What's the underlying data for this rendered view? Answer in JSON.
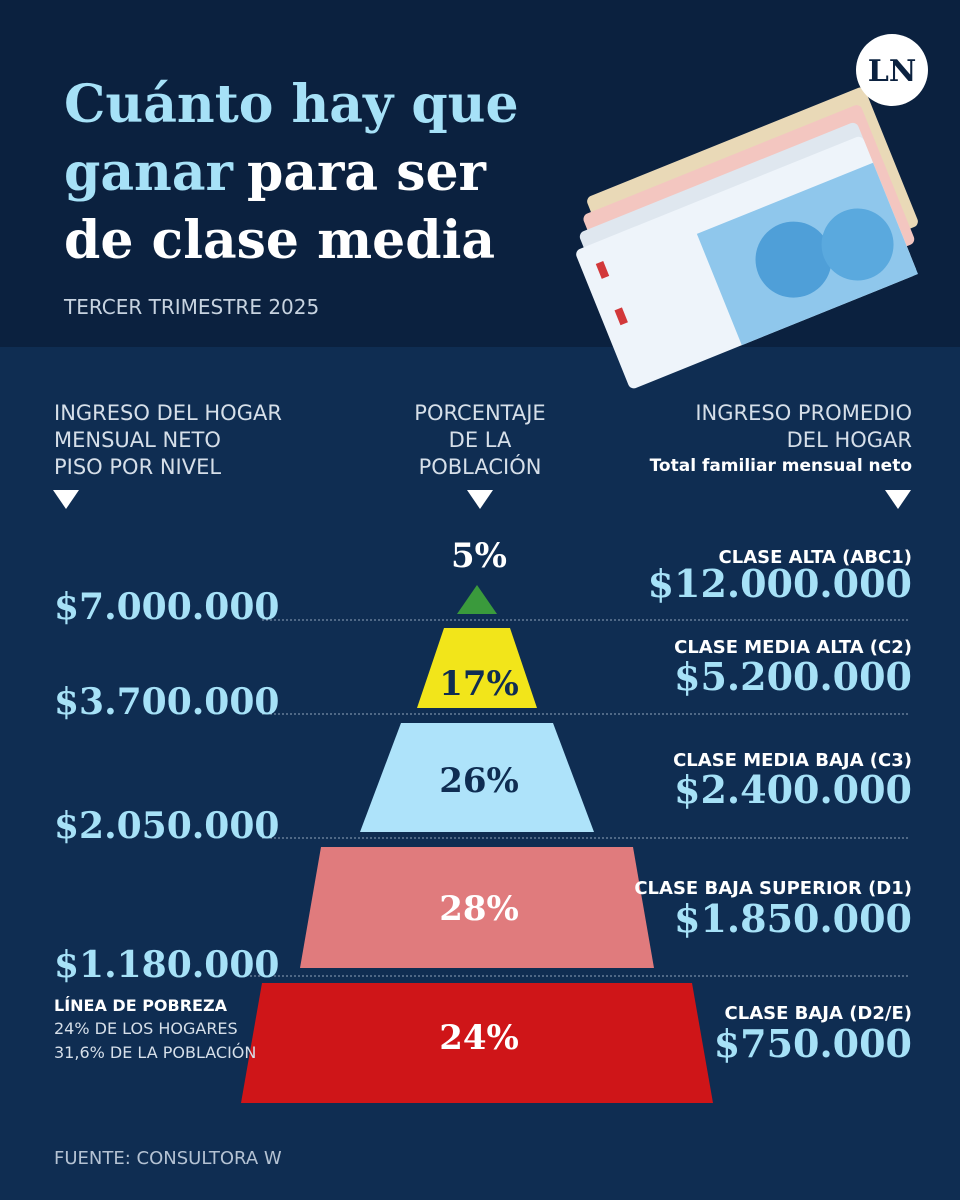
{
  "header": {
    "title_line1": "Cuánto hay que",
    "title_line2_highlight": "ganar",
    "title_line2_rest": "para ser",
    "title_line3": "de clase media",
    "subtitle": "TERCER TRIMESTRE 2025",
    "logo": "LN"
  },
  "columns": {
    "left": [
      "INGRESO DEL HOGAR",
      "MENSUAL NETO",
      "PISO POR NIVEL"
    ],
    "middle": [
      "PORCENTAJE",
      "DE LA",
      "POBLACIÓN"
    ],
    "right": [
      "INGRESO PROMEDIO",
      "DEL HOGAR"
    ],
    "right_note": "Total familiar mensual neto"
  },
  "levels": [
    {
      "name": "CLASE ALTA (ABC1)",
      "percent": "5%",
      "income": "$12.000.000",
      "floor": "$7.000.000"
    },
    {
      "name": "CLASE MEDIA ALTA (C2)",
      "percent": "17%",
      "income": "$5.200.000",
      "floor": "$3.700.000"
    },
    {
      "name": "CLASE MEDIA BAJA (C3)",
      "percent": "26%",
      "income": "$2.400.000",
      "floor": "$2.050.000"
    },
    {
      "name": "CLASE BAJA SUPERIOR (D1)",
      "percent": "28%",
      "income": "$1.850.000",
      "floor": "$1.180.000"
    },
    {
      "name": "CLASE BAJA (D2/E)",
      "percent": "24%",
      "income": "$750.000"
    }
  ],
  "poverty": {
    "title": "LÍNEA DE POBREZA",
    "lines": [
      "24% DE LOS HOGARES",
      "31,6% DE LA POBLACIÓN"
    ]
  },
  "source": "FUENTE: CONSULTORA W"
}
